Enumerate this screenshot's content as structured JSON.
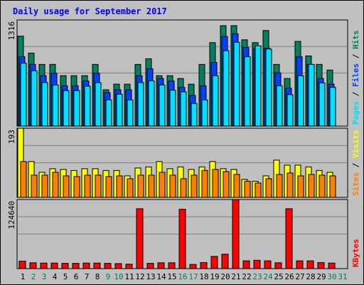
{
  "title": "Daily usage for September 2017",
  "colors": {
    "background": "#c0c0c0",
    "hits": "#00805c",
    "files": "#0040ff",
    "pages": "#00e0ff",
    "visits": "#ffff00",
    "sites": "#ff8000",
    "kbytes": "#ff0000",
    "weekday_label": "#000000",
    "weekend_label": "#00805c"
  },
  "chart_data": [
    {
      "type": "bar",
      "title": "",
      "ylabel": "1316",
      "ymax_label": "1316",
      "ylim": [
        0,
        1316
      ],
      "legend": [
        "Hits",
        "Files",
        "Pages"
      ],
      "legend_separator": " / ",
      "legend_placement": "right",
      "categories": [
        "1",
        "2",
        "3",
        "4",
        "5",
        "6",
        "7",
        "8",
        "9",
        "10",
        "11",
        "12",
        "13",
        "14",
        "15",
        "16",
        "17",
        "18",
        "19",
        "20",
        "21",
        "22",
        "23",
        "24",
        "25",
        "26",
        "27",
        "28",
        "29",
        "30"
      ],
      "series": [
        {
          "name": "Hits",
          "values": [
            1115,
            905,
            765,
            765,
            625,
            625,
            625,
            765,
            450,
            520,
            520,
            765,
            835,
            625,
            625,
            590,
            520,
            765,
            1035,
            1245,
            1245,
            1070,
            1035,
            1185,
            765,
            590,
            1050,
            870,
            765,
            695
          ]
        },
        {
          "name": "Files",
          "values": [
            860,
            765,
            625,
            655,
            500,
            500,
            560,
            655,
            415,
            450,
            450,
            625,
            710,
            590,
            560,
            480,
            380,
            500,
            790,
            1110,
            1145,
            975,
            965,
            965,
            660,
            470,
            860,
            765,
            590,
            520
          ]
        },
        {
          "name": "Pages",
          "values": [
            780,
            685,
            540,
            510,
            440,
            440,
            495,
            540,
            325,
            395,
            325,
            540,
            560,
            510,
            445,
            425,
            280,
            325,
            625,
            935,
            1040,
            860,
            995,
            955,
            500,
            390,
            625,
            765,
            535,
            480
          ]
        }
      ]
    },
    {
      "type": "bar",
      "title": "",
      "ylabel": "193",
      "ymax_label": "193",
      "ylim": [
        0,
        193
      ],
      "legend": [
        "Visits",
        "Sites"
      ],
      "legend_separator": " / ",
      "legend_placement": "right",
      "categories": [
        "1",
        "2",
        "3",
        "4",
        "5",
        "6",
        "7",
        "8",
        "9",
        "10",
        "11",
        "12",
        "13",
        "14",
        "15",
        "16",
        "17",
        "18",
        "19",
        "20",
        "21",
        "22",
        "23",
        "24",
        "25",
        "26",
        "27",
        "28",
        "29",
        "30"
      ],
      "series": [
        {
          "name": "Visits",
          "values": [
            193,
            100,
            70,
            80,
            78,
            75,
            80,
            80,
            75,
            75,
            60,
            82,
            85,
            100,
            80,
            85,
            78,
            85,
            100,
            80,
            78,
            50,
            45,
            60,
            104,
            90,
            90,
            85,
            75,
            70
          ]
        },
        {
          "name": "Sites",
          "values": [
            100,
            62,
            62,
            70,
            60,
            58,
            62,
            62,
            58,
            60,
            52,
            62,
            62,
            70,
            62,
            52,
            62,
            75,
            78,
            72,
            64,
            45,
            40,
            52,
            64,
            68,
            60,
            64,
            62,
            60
          ]
        }
      ]
    },
    {
      "type": "bar",
      "title": "",
      "ylabel": "124640",
      "ymax_label": "124640",
      "ylim": [
        0,
        124640
      ],
      "legend": [
        "KBytes"
      ],
      "legend_placement": "right",
      "categories": [
        "1",
        "2",
        "3",
        "4",
        "5",
        "6",
        "7",
        "8",
        "9",
        "10",
        "11",
        "12",
        "13",
        "14",
        "15",
        "16",
        "17",
        "18",
        "19",
        "20",
        "21",
        "22",
        "23",
        "24",
        "25",
        "26",
        "27",
        "28",
        "29",
        "30"
      ],
      "series": [
        {
          "name": "KBytes",
          "values": [
            13500,
            10500,
            10000,
            10000,
            9500,
            9500,
            10000,
            10000,
            9500,
            9000,
            8000,
            108000,
            9500,
            10500,
            10500,
            107000,
            7500,
            11000,
            22000,
            26000,
            124640,
            14000,
            15000,
            14000,
            10500,
            108000,
            14000,
            14000,
            11000,
            10000
          ]
        }
      ]
    }
  ],
  "days": [
    "1",
    "2",
    "3",
    "4",
    "5",
    "6",
    "7",
    "8",
    "9",
    "10",
    "11",
    "12",
    "13",
    "14",
    "15",
    "16",
    "17",
    "18",
    "19",
    "20",
    "21",
    "22",
    "23",
    "24",
    "25",
    "26",
    "27",
    "28",
    "29",
    "30",
    "31"
  ],
  "weekend_days": [
    "2",
    "3",
    "9",
    "10",
    "16",
    "17",
    "23",
    "24",
    "30",
    "31"
  ]
}
